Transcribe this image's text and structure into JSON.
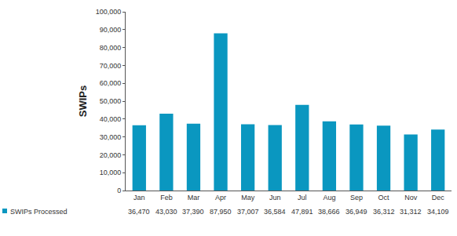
{
  "chart_data": {
    "type": "bar",
    "y_label": "SWIPs",
    "categories": [
      "Jan",
      "Feb",
      "Mar",
      "Apr",
      "May",
      "Jun",
      "Jul",
      "Aug",
      "Sep",
      "Oct",
      "Nov",
      "Dec"
    ],
    "series": [
      {
        "name": "SWIPs Processed",
        "color": "#0a97c0",
        "values": [
          36470,
          43030,
          37390,
          87950,
          37007,
          36584,
          47891,
          38666,
          36949,
          36312,
          31312,
          34109
        ],
        "value_labels": [
          "36,470",
          "43,030",
          "37,390",
          "87,950",
          "37,007",
          "36,584",
          "47,891",
          "38,666",
          "36,949",
          "36,312",
          "31,312",
          "34,109"
        ]
      }
    ],
    "ylim": [
      0,
      100000
    ],
    "yticks": [
      0,
      {
        "value": 10000,
        "label": "10,000"
      },
      {
        "value": 20000,
        "label": "20,000"
      },
      {
        "value": 30000,
        "label": "30,000"
      },
      {
        "value": 40000,
        "label": "40,000"
      },
      {
        "value": 50000,
        "label": "50,000"
      },
      {
        "value": 60000,
        "label": "60,000"
      },
      {
        "value": 70000,
        "label": "70,000"
      },
      {
        "value": 80000,
        "label": "80,000"
      },
      {
        "value": 90000,
        "label": "90,000"
      },
      {
        "value": 100000,
        "label": "100,000"
      }
    ],
    "grid": false,
    "data_labels": true
  }
}
